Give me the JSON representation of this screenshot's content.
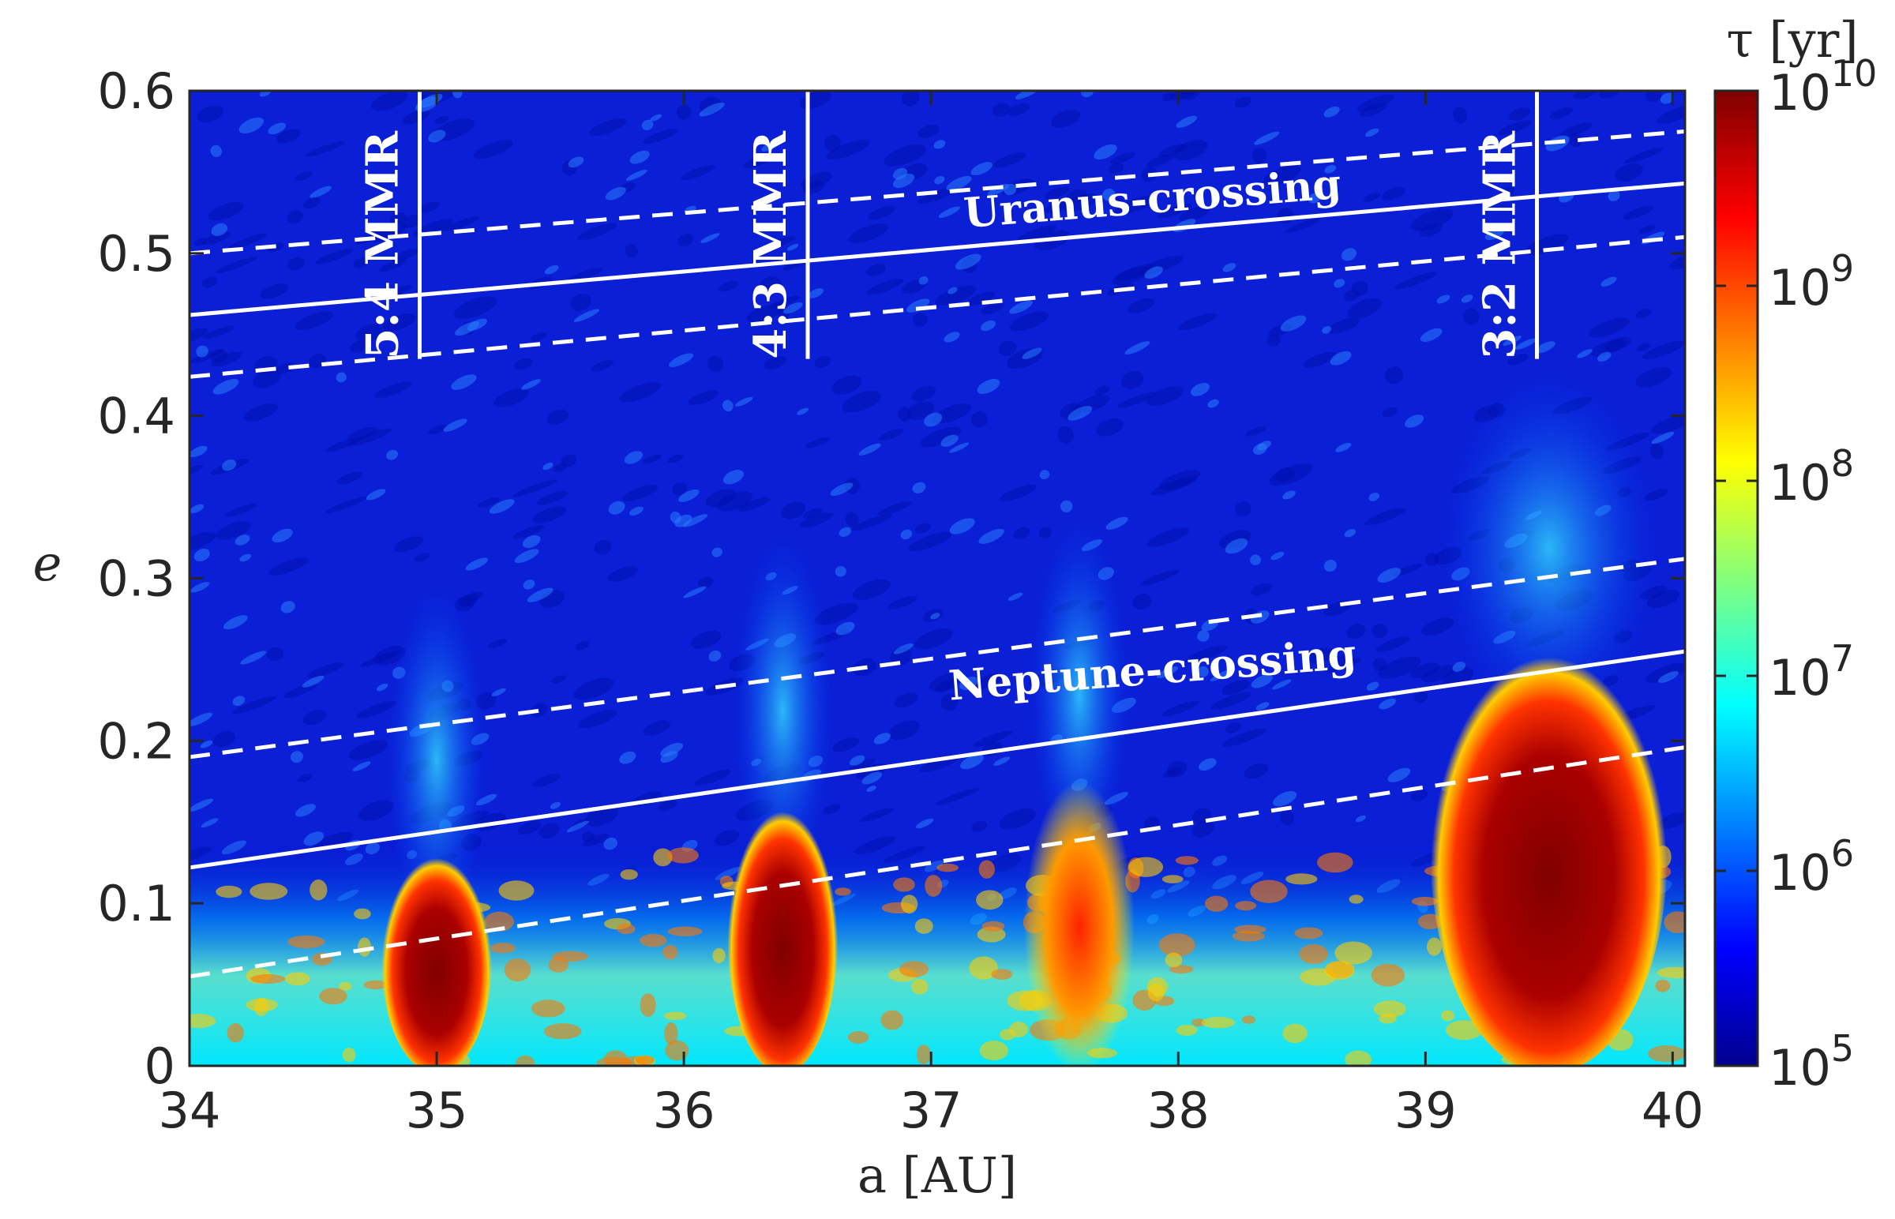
{
  "chart_data": {
    "type": "heatmap",
    "title": "",
    "xlabel": "a [AU]",
    "ylabel": "e",
    "xlim": [
      34,
      40.05
    ],
    "ylim": [
      0,
      0.6
    ],
    "xticks": [
      34,
      35,
      36,
      37,
      38,
      39,
      40
    ],
    "xtick_labels": [
      "34",
      "35",
      "36",
      "37",
      "38",
      "39",
      "40"
    ],
    "yticks": [
      0,
      0.1,
      0.2,
      0.3,
      0.4,
      0.5,
      0.6
    ],
    "ytick_labels": [
      "0",
      "0.1",
      "0.2",
      "0.3",
      "0.4",
      "0.5",
      "0.6"
    ],
    "colorbar": {
      "label": "τ [yr]",
      "scale": "log",
      "range": [
        100000,
        10000000000
      ],
      "ticks": [
        {
          "base": "10",
          "exp": "5"
        },
        {
          "base": "10",
          "exp": "6"
        },
        {
          "base": "10",
          "exp": "7"
        },
        {
          "base": "10",
          "exp": "8"
        },
        {
          "base": "10",
          "exp": "9"
        },
        {
          "base": "10",
          "exp": "10"
        }
      ],
      "colormap": [
        "#00008f",
        "#0000ff",
        "#00ffff",
        "#ffff00",
        "#ff0000",
        "#800000"
      ]
    },
    "regions": [
      {
        "a": 35.0,
        "e_max": 0.13,
        "log_tau": 9.4
      },
      {
        "a": 36.4,
        "e_max": 0.16,
        "log_tau": 9.6
      },
      {
        "a": 37.6,
        "e_max": 0.17,
        "log_tau": 8.8
      },
      {
        "a": 39.5,
        "e_max": 0.26,
        "log_tau": 10
      }
    ],
    "curves": [
      {
        "name": "Uranus-crossing",
        "style": "solid",
        "x": [
          34,
          40.05
        ],
        "y": [
          0.462,
          0.543
        ]
      },
      {
        "name": "Uranus-upper",
        "style": "dashed",
        "x": [
          34,
          40.05
        ],
        "y": [
          0.5,
          0.575
        ]
      },
      {
        "name": "Uranus-lower",
        "style": "dashed",
        "x": [
          34,
          40.05
        ],
        "y": [
          0.424,
          0.51
        ]
      },
      {
        "name": "Neptune-crossing",
        "style": "solid",
        "x": [
          34,
          40.05
        ],
        "y": [
          0.122,
          0.255
        ]
      },
      {
        "name": "Neptune-upper",
        "style": "dashed",
        "x": [
          34,
          40.05
        ],
        "y": [
          0.19,
          0.312
        ]
      },
      {
        "name": "Neptune-lower",
        "style": "dashed",
        "x": [
          34,
          40.05
        ],
        "y": [
          0.055,
          0.196
        ]
      }
    ],
    "resonances": [
      {
        "label": "5:4 MMR",
        "a": 34.88,
        "e_min": 0.435,
        "e_max": 0.6
      },
      {
        "label": "4:3 MMR",
        "a": 36.45,
        "e_min": 0.435,
        "e_max": 0.6
      },
      {
        "label": "3:2 MMR",
        "a": 39.4,
        "e_min": 0.435,
        "e_max": 0.6
      }
    ],
    "annotations": [
      {
        "text": "Uranus-crossing",
        "a": 37.9,
        "e": 0.525
      },
      {
        "text": "Neptune-crossing",
        "a": 37.9,
        "e": 0.235
      }
    ]
  }
}
